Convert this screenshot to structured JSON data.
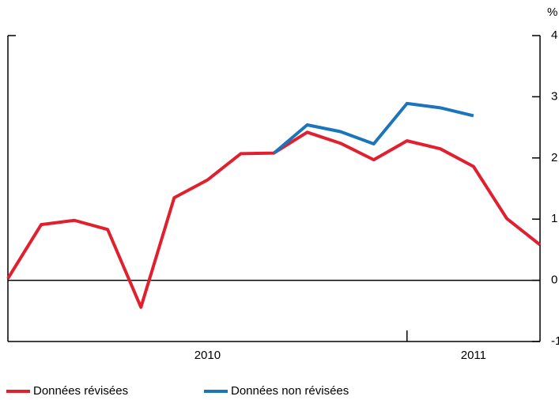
{
  "chart_data": {
    "type": "line",
    "y_label": "%",
    "categories": [
      null,
      null,
      null,
      null,
      null,
      null,
      "2010",
      null,
      null,
      null,
      null,
      null,
      null,
      null,
      "2011",
      null,
      null
    ],
    "series": [
      {
        "name": "Données révisées",
        "color": "#e0202e",
        "values": [
          0.03,
          0.91,
          0.98,
          0.83,
          -0.44,
          1.35,
          1.64,
          2.07,
          2.08,
          2.42,
          2.24,
          1.97,
          2.28,
          2.15,
          1.86,
          1.01,
          0.58
        ]
      },
      {
        "name": "Données non révisées",
        "color": "#1a75bb",
        "values": [
          null,
          null,
          null,
          null,
          null,
          null,
          null,
          null,
          2.08,
          2.54,
          2.43,
          2.23,
          2.89,
          2.82,
          2.69,
          null,
          null
        ]
      }
    ],
    "ylim": [
      -1,
      4
    ],
    "yticks": [
      -1,
      0,
      1,
      2,
      3,
      4
    ],
    "zero_line": true
  }
}
